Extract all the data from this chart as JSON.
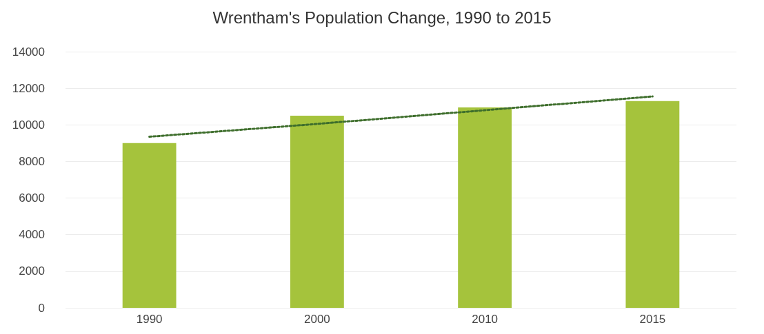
{
  "chart_data": {
    "type": "bar",
    "title": "Wrentham's Population Change, 1990 to 2015",
    "categories": [
      "1990",
      "2000",
      "2010",
      "2015"
    ],
    "series": [
      {
        "color": "#a5c33c",
        "values": [
          9000,
          10500,
          10950,
          11300
        ]
      },
      {
        "type": "line",
        "color": "#3e6e2c",
        "values": [
          9350,
          10050,
          10800,
          11550
        ],
        "line_style": "dotted",
        "marker": "none"
      }
    ],
    "ylim": [
      0,
      14000
    ],
    "yticks": [
      0,
      2000,
      4000,
      6000,
      8000,
      10000,
      12000,
      14000
    ],
    "grid": "y"
  }
}
